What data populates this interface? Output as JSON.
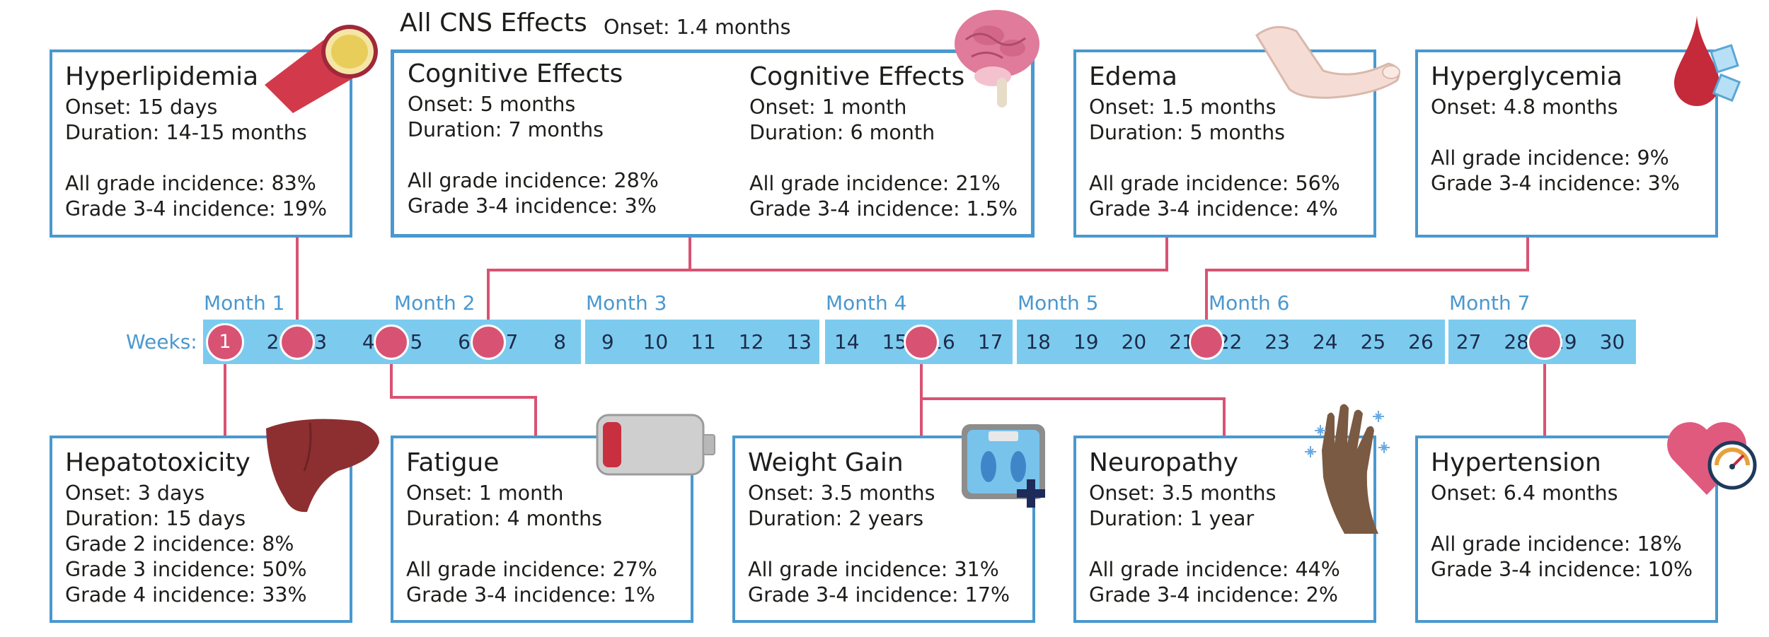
{
  "header": {
    "title": "All CNS Effects",
    "onset": "Onset: 1.4 months"
  },
  "timeline": {
    "weeks_label": "Weeks:",
    "months": [
      "Month 1",
      "Month 2",
      "Month 3",
      "Month 4",
      "Month 5",
      "Month 6",
      "Month 7"
    ],
    "weeks": [
      "1",
      "2",
      "3",
      "4",
      "5",
      "6",
      "7",
      "8",
      "9",
      "10",
      "11",
      "12",
      "13",
      "14",
      "15",
      "16",
      "17",
      "18",
      "19",
      "20",
      "21",
      "22",
      "23",
      "24",
      "25",
      "26",
      "27",
      "28",
      "29",
      "30"
    ],
    "first_marker": "1"
  },
  "top": {
    "hyperlipidemia": {
      "title": "Hyperlipidemia",
      "onset": "Onset: 15 days",
      "duration": "Duration: 14-15 months",
      "all_grade": "All grade incidence: 83%",
      "grade34": "Grade 3-4 incidence: 19%"
    },
    "cognitive1": {
      "title": "Cognitive Effects",
      "onset": "Onset: 5 months",
      "duration": "Duration: 7 months",
      "all_grade": "All grade incidence: 28%",
      "grade34": "Grade 3-4 incidence: 3%"
    },
    "cognitive2": {
      "title": "Cognitive Effects",
      "onset": "Onset: 1 month",
      "duration": "Duration: 6 month",
      "all_grade": "All grade incidence: 21%",
      "grade34": "Grade 3-4 incidence: 1.5%"
    },
    "edema": {
      "title": "Edema",
      "onset": "Onset: 1.5 months",
      "duration": "Duration: 5 months",
      "all_grade": "All grade incidence: 56%",
      "grade34": "Grade 3-4 incidence: 4%"
    },
    "hyperglycemia": {
      "title": "Hyperglycemia",
      "onset": "Onset: 4.8 months",
      "all_grade": "All grade incidence: 9%",
      "grade34": "Grade 3-4 incidence: 3%"
    }
  },
  "bottom": {
    "hepatotoxicity": {
      "title": "Hepatotoxicity",
      "onset": "Onset: 3 days",
      "duration": "Duration: 15 days",
      "grade2": "Grade 2 incidence: 8%",
      "grade3": "Grade 3 incidence: 50%",
      "grade4": "Grade 4 incidence: 33%"
    },
    "fatigue": {
      "title": "Fatigue",
      "onset": "Onset: 1 month",
      "duration": "Duration: 4 months",
      "all_grade": "All grade incidence: 27%",
      "grade34": "Grade 3-4 incidence: 1%"
    },
    "weight_gain": {
      "title": "Weight Gain",
      "onset": "Onset: 3.5 months",
      "duration": "Duration: 2 years",
      "all_grade": "All grade incidence: 31%",
      "grade34": "Grade 3-4 incidence: 17%"
    },
    "neuropathy": {
      "title": "Neuropathy",
      "onset": "Onset: 3.5 months",
      "duration": "Duration: 1 year",
      "all_grade": "All grade incidence: 44%",
      "grade34": "Grade 3-4 incidence: 2%"
    },
    "hypertension": {
      "title": "Hypertension",
      "onset": "Onset: 6.4 months",
      "all_grade": "All grade incidence: 18%",
      "grade34": "Grade 3-4 incidence: 10%"
    }
  },
  "icons": [
    "blood-vessel-icon",
    "brain-icon",
    "foot-icon",
    "blood-drop-sugar-icon",
    "liver-icon",
    "low-battery-icon",
    "bathroom-scale-icon",
    "tingling-hand-icon",
    "heart-gauge-icon"
  ],
  "colors": {
    "box_border": "#4a98cf",
    "timeline_bar": "#7ccbef",
    "connector": "#d85373",
    "month_label": "#4a98cf",
    "week_text": "#1e2a4a"
  }
}
